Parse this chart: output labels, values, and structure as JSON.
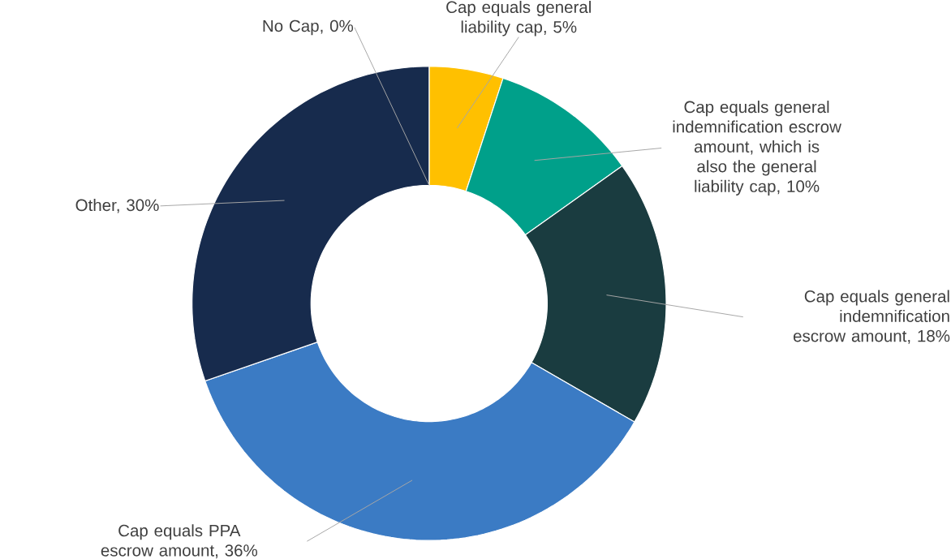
{
  "chart_data": {
    "type": "donut",
    "categories": [
      "Cap equals general liability cap, 5%",
      "Cap equals general indemnification escrow amount, which is also the general liability cap, 10%",
      "Cap equals general indemnification escrow amount, 18%",
      "Cap equals PPA escrow amount, 36%",
      "Other, 30%",
      "No Cap, 0%"
    ],
    "values": [
      5,
      10,
      18,
      36,
      30,
      0
    ],
    "colors": [
      "#ffc000",
      "#00a08a",
      "#1a3c40",
      "#3b7bc4",
      "#172b4d",
      "#7f7f7f"
    ]
  }
}
